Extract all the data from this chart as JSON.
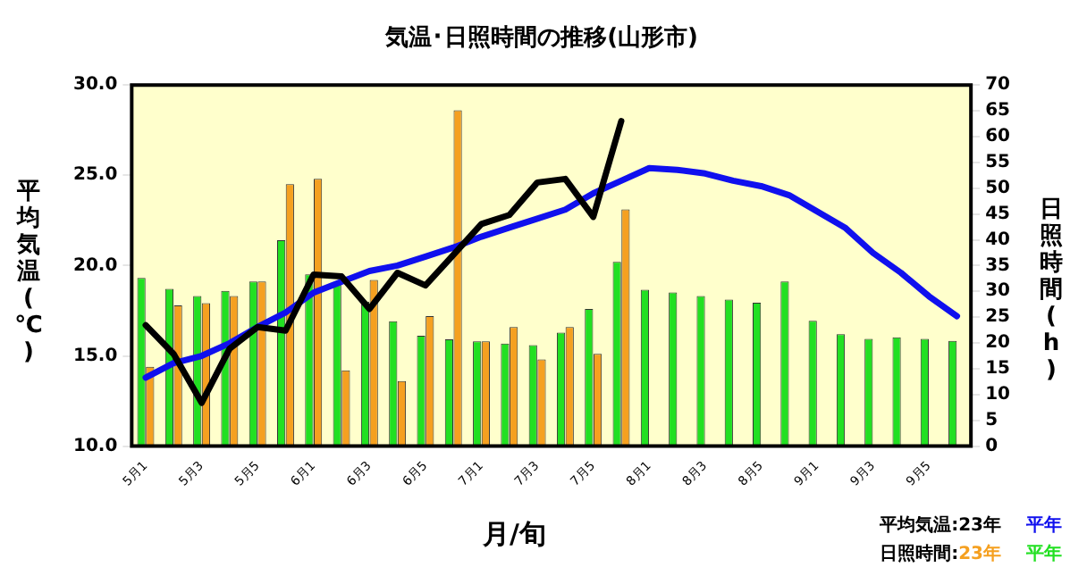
{
  "chart_data": {
    "type": "bar",
    "title": "気温･日照時間の推移(山形市)",
    "xlabel": "月/旬",
    "ylabel": "平均気温(℃)",
    "y2label": "日照時間(h)",
    "categories": [
      "5月1",
      null,
      "5月3",
      null,
      "5月5",
      null,
      "6月1",
      null,
      "6月3",
      null,
      "6月5",
      null,
      "7月1",
      null,
      "7月3",
      null,
      "7月5",
      null,
      "8月1",
      null,
      "8月3",
      null,
      "8月5",
      null,
      "9月1",
      null,
      "9月3",
      null,
      "9月5",
      null
    ],
    "series": [
      {
        "name": "平年",
        "axis": "y2",
        "color": "#22e022",
        "values": [
          32.6,
          30.5,
          29.1,
          30.1,
          31.9,
          39.9,
          33.3,
          31.5,
          28.0,
          24.2,
          21.4,
          20.7,
          20.3,
          19.9,
          19.6,
          22.0,
          26.6,
          35.7,
          30.3,
          29.8,
          29.1,
          28.4,
          27.8,
          31.9,
          24.3,
          21.7,
          20.8,
          21.1,
          20.8,
          20.4
        ]
      },
      {
        "name": "23年",
        "axis": "y2",
        "color": "#f5a020",
        "values": [
          15.4,
          27.3,
          27.7,
          29.1,
          31.9,
          50.8,
          51.8,
          14.7,
          32.2,
          12.6,
          25.2,
          65.1,
          20.3,
          23.1,
          16.8,
          23.1,
          17.9,
          45.9,
          null,
          null,
          null,
          null,
          null,
          null,
          null,
          null,
          null,
          null,
          null,
          null
        ]
      },
      {
        "name": "23年",
        "type": "line",
        "axis": "y",
        "color": "#000000",
        "values": [
          16.7,
          15.1,
          12.4,
          15.4,
          16.6,
          16.4,
          19.5,
          19.4,
          17.6,
          19.6,
          18.9,
          20.6,
          22.3,
          22.8,
          24.6,
          24.8,
          22.7,
          28.0,
          null,
          null,
          null,
          null,
          null,
          null,
          null,
          null,
          null,
          null,
          null,
          null
        ]
      },
      {
        "name": "平年",
        "type": "line",
        "axis": "y",
        "color": "#1010ee",
        "values": [
          13.8,
          14.6,
          15.0,
          15.7,
          16.6,
          17.4,
          18.5,
          19.1,
          19.7,
          20.0,
          20.5,
          21.0,
          21.6,
          22.1,
          22.6,
          23.1,
          24.0,
          24.7,
          25.4,
          25.3,
          25.1,
          24.7,
          24.4,
          23.9,
          23.0,
          22.1,
          20.7,
          19.6,
          18.3,
          17.2
        ]
      }
    ],
    "ylim": [
      10,
      30
    ],
    "yticks": [
      {
        "value": 10,
        "label": "10.0"
      },
      {
        "value": 15,
        "label": "15.0"
      },
      {
        "value": 20,
        "label": "20.0"
      },
      {
        "value": 25,
        "label": "25.0"
      },
      {
        "value": 30,
        "label": "30.0"
      }
    ],
    "y2lim": [
      0,
      70
    ],
    "y2ticks": [
      0,
      5,
      10,
      15,
      20,
      25,
      30,
      35,
      40,
      45,
      50,
      55,
      60,
      65,
      70
    ],
    "grid": false,
    "legend": "bottom right",
    "marker": "none",
    "line_style": "solid",
    "annotations": [
      "平均気温:",
      "日照時間:"
    ]
  }
}
